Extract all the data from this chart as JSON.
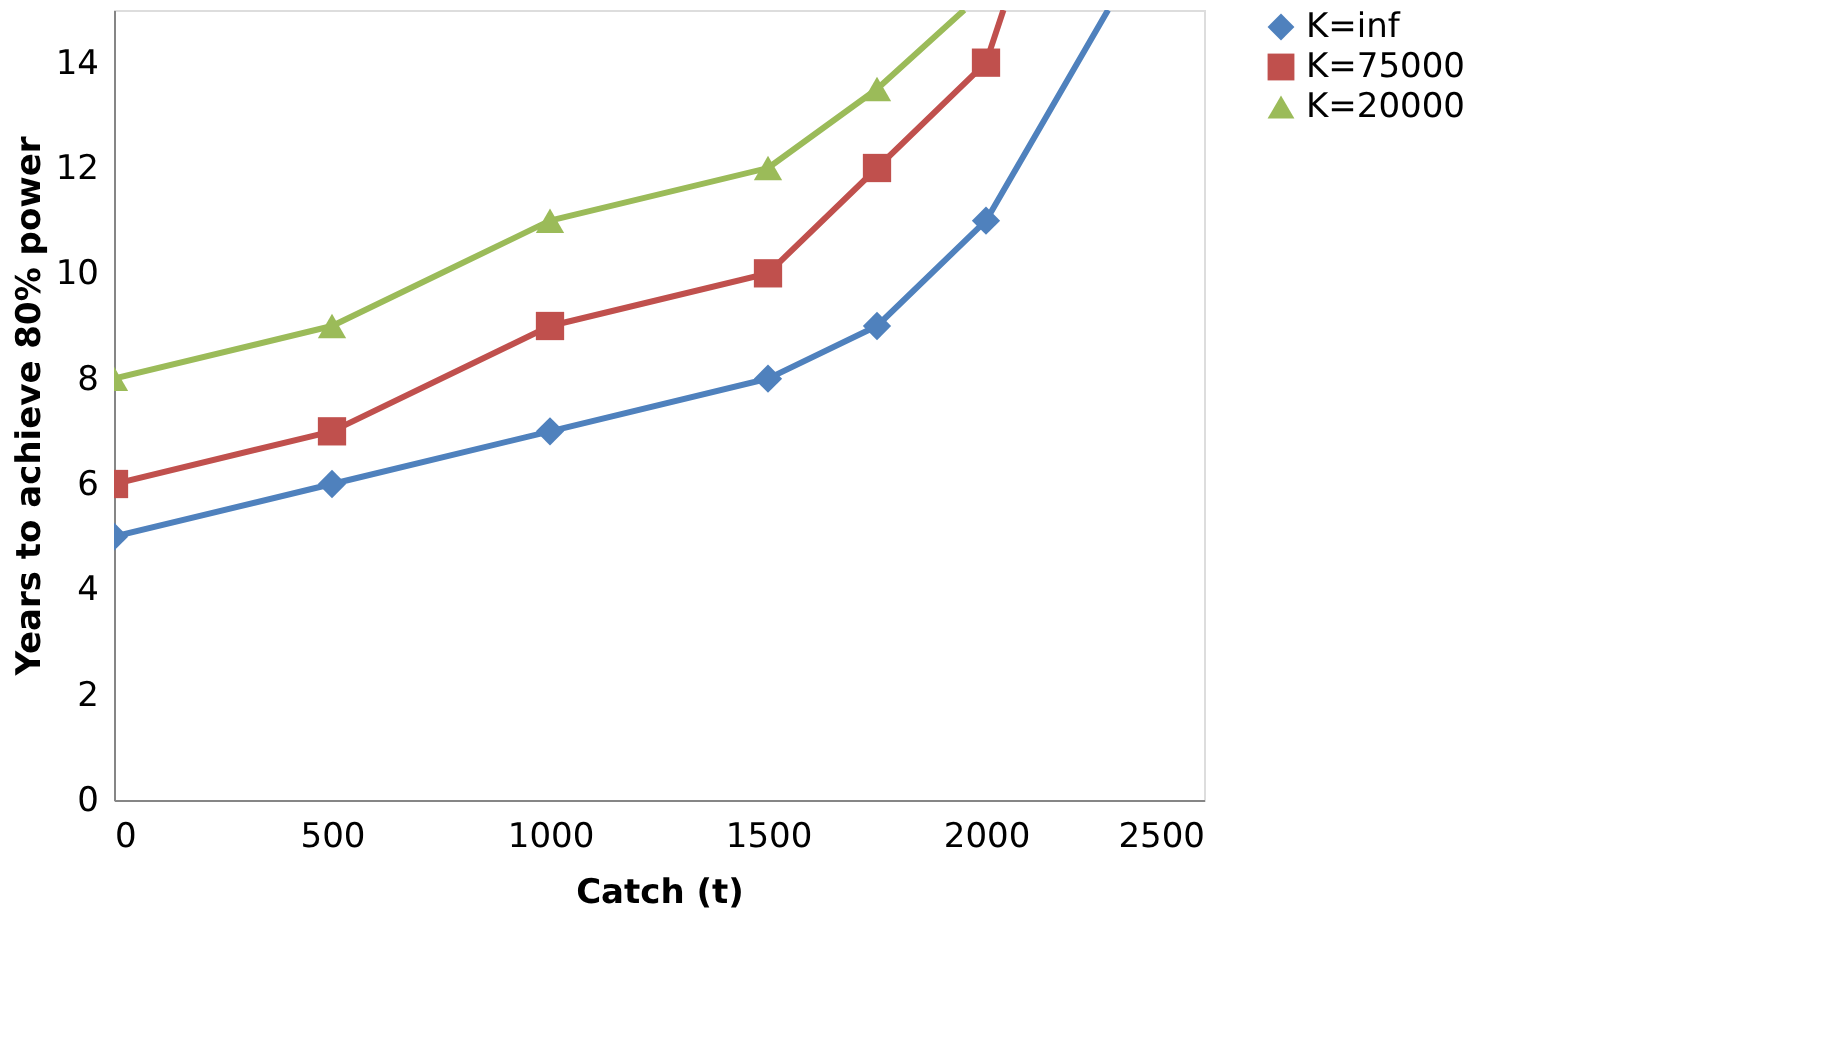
{
  "chart_data": {
    "type": "line",
    "xlabel": "Catch (t)",
    "ylabel": "Years to achieve 80% power",
    "xlim": [
      0,
      2500
    ],
    "xticks": [
      0,
      500,
      1000,
      1500,
      2000,
      2500
    ],
    "ylim": [
      0,
      15
    ],
    "yticks": [
      0,
      2,
      4,
      6,
      8,
      10,
      12,
      14
    ],
    "grid": false,
    "legend": "right",
    "series": [
      {
        "name": "K=inf",
        "color": "#4f81bd",
        "marker": "diamond",
        "x": [
          0,
          500,
          1000,
          1500,
          1750,
          2000,
          2280
        ],
        "values": [
          5,
          6,
          7,
          8,
          9,
          11,
          15
        ]
      },
      {
        "name": "K=75000",
        "color": "#c0504d",
        "marker": "square",
        "x": [
          0,
          500,
          1000,
          1500,
          1750,
          2000,
          2040
        ],
        "values": [
          6,
          7,
          9,
          10,
          12,
          14,
          15
        ]
      },
      {
        "name": "K=20000",
        "color": "#9bbb59",
        "marker": "triangle",
        "x": [
          0,
          500,
          1000,
          1500,
          1750,
          1950
        ],
        "values": [
          8,
          9,
          11,
          12,
          13.5,
          15
        ]
      }
    ]
  }
}
